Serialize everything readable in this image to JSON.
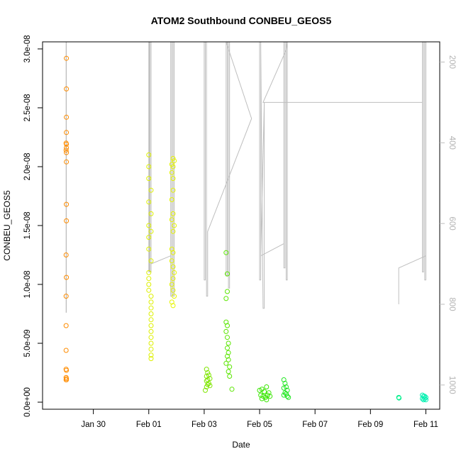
{
  "chart_data": {
    "type": "scatter",
    "title": "ATOM2 Southbound CONBEU_GEOS5",
    "xlabel": "Date",
    "ylabel": "CONBEU_GEOS5",
    "x_axis": {
      "type": "date",
      "range": [
        "2016-01-28T04:00",
        "2016-02-11T12:00"
      ],
      "ticks": [
        {
          "date": "2016-01-30",
          "label": "Jan 30"
        },
        {
          "date": "2016-02-01",
          "label": "Feb 01"
        },
        {
          "date": "2016-02-03",
          "label": "Feb 03"
        },
        {
          "date": "2016-02-05",
          "label": "Feb 05"
        },
        {
          "date": "2016-02-07",
          "label": "Feb 07"
        },
        {
          "date": "2016-02-09",
          "label": "Feb 09"
        },
        {
          "date": "2016-02-11",
          "label": "Feb 11"
        }
      ]
    },
    "y_axis": {
      "range": [
        -6e-10,
        3.06e-08
      ],
      "ticks": [
        {
          "value": 0,
          "label": "0.0e+00"
        },
        {
          "value": 5e-09,
          "label": "5.0e-09"
        },
        {
          "value": 1e-08,
          "label": "1.0e-08"
        },
        {
          "value": 1.5e-08,
          "label": "1.5e-08"
        },
        {
          "value": 2e-08,
          "label": "2.0e-08"
        },
        {
          "value": 2.5e-08,
          "label": "2.5e-08"
        },
        {
          "value": 3e-08,
          "label": "3.0e-08"
        }
      ]
    },
    "y2_axis": {
      "reversed": true,
      "color": "#bebebe",
      "range": [
        1060,
        150
      ],
      "ticks": [
        {
          "value": 200,
          "label": "200"
        },
        {
          "value": 400,
          "label": "400"
        },
        {
          "value": 600,
          "label": "600"
        },
        {
          "value": 800,
          "label": "800"
        },
        {
          "value": 1000,
          "label": "1000"
        }
      ]
    },
    "grid": false,
    "marker": "open-circle",
    "flights": [
      {
        "color": "#ff8c00",
        "points": [
          {
            "x": "2016-01-29T00:37",
            "y": 2.92e-08
          },
          {
            "x": "2016-01-29T00:37",
            "y": 2.66e-08
          },
          {
            "x": "2016-01-29T00:37",
            "y": 2.42e-08
          },
          {
            "x": "2016-01-29T00:37",
            "y": 2.29e-08
          },
          {
            "x": "2016-01-29T00:25",
            "y": 2.2e-08
          },
          {
            "x": "2016-01-29T00:37",
            "y": 2.19e-08
          },
          {
            "x": "2016-01-29T00:37",
            "y": 2.16e-08
          },
          {
            "x": "2016-01-29T00:25",
            "y": 2.14e-08
          },
          {
            "x": "2016-01-29T00:37",
            "y": 2.12e-08
          },
          {
            "x": "2016-01-29T00:37",
            "y": 2.04e-08
          },
          {
            "x": "2016-01-29T00:37",
            "y": 1.68e-08
          },
          {
            "x": "2016-01-29T00:37",
            "y": 1.54e-08
          },
          {
            "x": "2016-01-29T00:25",
            "y": 1.25e-08
          },
          {
            "x": "2016-01-29T00:37",
            "y": 1.06e-08
          },
          {
            "x": "2016-01-29T00:25",
            "y": 9e-09
          },
          {
            "x": "2016-01-29T00:25",
            "y": 6.5e-09
          },
          {
            "x": "2016-01-29T00:25",
            "y": 4.4e-09
          },
          {
            "x": "2016-01-29T00:25",
            "y": 2.8e-09
          },
          {
            "x": "2016-01-29T00:37",
            "y": 2.7e-09
          },
          {
            "x": "2016-01-29T00:25",
            "y": 2.1e-09
          },
          {
            "x": "2016-01-29T00:37",
            "y": 2e-09
          },
          {
            "x": "2016-01-29T00:25",
            "y": 1.9e-09
          },
          {
            "x": "2016-01-29T00:37",
            "y": 1.9e-09
          }
        ]
      },
      {
        "color": "#ddf000",
        "points": [
          {
            "x": "2016-02-01T00:00",
            "y": 2.1e-08
          },
          {
            "x": "2016-02-01T00:00",
            "y": 2e-08
          },
          {
            "x": "2016-02-01T00:00",
            "y": 1.9e-08
          },
          {
            "x": "2016-02-01T02:00",
            "y": 1.8e-08
          },
          {
            "x": "2016-02-01T00:00",
            "y": 1.7e-08
          },
          {
            "x": "2016-02-01T02:00",
            "y": 1.6e-08
          },
          {
            "x": "2016-02-01T00:00",
            "y": 1.5e-08
          },
          {
            "x": "2016-02-01T02:00",
            "y": 1.45e-08
          },
          {
            "x": "2016-02-01T00:00",
            "y": 1.4e-08
          },
          {
            "x": "2016-02-01T00:00",
            "y": 1.3e-08
          },
          {
            "x": "2016-02-01T02:00",
            "y": 1.2e-08
          },
          {
            "x": "2016-02-01T00:00",
            "y": 1.1e-08
          },
          {
            "x": "2016-02-01T00:00",
            "y": 1.05e-08
          },
          {
            "x": "2016-02-01T00:00",
            "y": 1e-08
          },
          {
            "x": "2016-02-01T00:00",
            "y": 9.5e-09
          },
          {
            "x": "2016-02-01T02:00",
            "y": 9e-09
          },
          {
            "x": "2016-02-01T02:00",
            "y": 8.5e-09
          },
          {
            "x": "2016-02-01T02:00",
            "y": 8e-09
          },
          {
            "x": "2016-02-01T02:00",
            "y": 7.5e-09
          },
          {
            "x": "2016-02-01T02:00",
            "y": 7e-09
          },
          {
            "x": "2016-02-01T02:00",
            "y": 6.5e-09
          },
          {
            "x": "2016-02-01T02:00",
            "y": 6e-09
          },
          {
            "x": "2016-02-01T02:00",
            "y": 5.5e-09
          },
          {
            "x": "2016-02-01T02:00",
            "y": 5e-09
          },
          {
            "x": "2016-02-01T02:00",
            "y": 4.5e-09
          },
          {
            "x": "2016-02-01T02:00",
            "y": 4e-09
          },
          {
            "x": "2016-02-01T02:00",
            "y": 3.7e-09
          }
        ]
      },
      {
        "color": "#e6f500",
        "points": [
          {
            "x": "2016-02-01T21:00",
            "y": 2.07e-08
          },
          {
            "x": "2016-02-01T22:00",
            "y": 2.05e-08
          },
          {
            "x": "2016-02-01T20:00",
            "y": 2.02e-08
          },
          {
            "x": "2016-02-01T21:00",
            "y": 2e-08
          },
          {
            "x": "2016-02-01T20:00",
            "y": 1.95e-08
          },
          {
            "x": "2016-02-01T21:00",
            "y": 1.9e-08
          },
          {
            "x": "2016-02-01T21:00",
            "y": 1.8e-08
          },
          {
            "x": "2016-02-01T20:00",
            "y": 1.72e-08
          },
          {
            "x": "2016-02-01T21:00",
            "y": 1.6e-08
          },
          {
            "x": "2016-02-01T20:00",
            "y": 1.55e-08
          },
          {
            "x": "2016-02-01T22:00",
            "y": 1.5e-08
          },
          {
            "x": "2016-02-01T21:00",
            "y": 1.45e-08
          },
          {
            "x": "2016-02-01T20:00",
            "y": 1.3e-08
          },
          {
            "x": "2016-02-01T21:00",
            "y": 1.27e-08
          },
          {
            "x": "2016-02-01T20:00",
            "y": 1.2e-08
          },
          {
            "x": "2016-02-01T21:00",
            "y": 1.15e-08
          },
          {
            "x": "2016-02-01T22:00",
            "y": 1.1e-08
          },
          {
            "x": "2016-02-01T21:00",
            "y": 1.05e-08
          },
          {
            "x": "2016-02-01T20:00",
            "y": 1e-08
          },
          {
            "x": "2016-02-01T21:00",
            "y": 9.5e-09
          },
          {
            "x": "2016-02-01T22:00",
            "y": 9e-09
          },
          {
            "x": "2016-02-01T20:00",
            "y": 8.5e-09
          },
          {
            "x": "2016-02-01T21:00",
            "y": 8.2e-09
          }
        ]
      },
      {
        "color": "#7fe600",
        "points": [
          {
            "x": "2016-02-03T02:00",
            "y": 2.8e-09
          },
          {
            "x": "2016-02-03T03:00",
            "y": 2.5e-09
          },
          {
            "x": "2016-02-03T04:00",
            "y": 2.3e-09
          },
          {
            "x": "2016-02-03T02:00",
            "y": 2.2e-09
          },
          {
            "x": "2016-02-03T05:00",
            "y": 2e-09
          },
          {
            "x": "2016-02-03T03:00",
            "y": 1.9e-09
          },
          {
            "x": "2016-02-03T02:00",
            "y": 1.8e-09
          },
          {
            "x": "2016-02-03T04:00",
            "y": 1.6e-09
          },
          {
            "x": "2016-02-03T03:00",
            "y": 1.5e-09
          },
          {
            "x": "2016-02-03T05:00",
            "y": 1.4e-09
          },
          {
            "x": "2016-02-03T02:00",
            "y": 1.3e-09
          },
          {
            "x": "2016-02-03T01:00",
            "y": 1e-09
          }
        ]
      },
      {
        "color": "#5ae600",
        "points": [
          {
            "x": "2016-02-03T19:00",
            "y": 1.27e-08
          },
          {
            "x": "2016-02-03T20:00",
            "y": 1.09e-08
          },
          {
            "x": "2016-02-03T20:00",
            "y": 9.4e-09
          },
          {
            "x": "2016-02-03T19:00",
            "y": 8.8e-09
          },
          {
            "x": "2016-02-03T19:00",
            "y": 6.8e-09
          },
          {
            "x": "2016-02-03T20:00",
            "y": 6.5e-09
          },
          {
            "x": "2016-02-03T19:00",
            "y": 6e-09
          },
          {
            "x": "2016-02-03T20:00",
            "y": 5.5e-09
          },
          {
            "x": "2016-02-03T21:00",
            "y": 5e-09
          },
          {
            "x": "2016-02-03T20:00",
            "y": 4.6e-09
          },
          {
            "x": "2016-02-03T21:00",
            "y": 4.2e-09
          },
          {
            "x": "2016-02-03T20:00",
            "y": 3.9e-09
          },
          {
            "x": "2016-02-03T21:00",
            "y": 3.6e-09
          },
          {
            "x": "2016-02-03T19:00",
            "y": 3.3e-09
          },
          {
            "x": "2016-02-03T22:00",
            "y": 3e-09
          },
          {
            "x": "2016-02-03T21:00",
            "y": 2.6e-09
          },
          {
            "x": "2016-02-03T22:00",
            "y": 2.2e-09
          },
          {
            "x": "2016-02-04T00:00",
            "y": 1.1e-09
          }
        ]
      },
      {
        "color": "#38e600",
        "points": [
          {
            "x": "2016-02-05T00:00",
            "y": 1e-09
          },
          {
            "x": "2016-02-05T02:00",
            "y": 1.1e-09
          },
          {
            "x": "2016-02-05T04:00",
            "y": 9e-10
          },
          {
            "x": "2016-02-05T06:00",
            "y": 1.3e-09
          },
          {
            "x": "2016-02-05T08:00",
            "y": 8e-10
          },
          {
            "x": "2016-02-05T01:00",
            "y": 6e-10
          },
          {
            "x": "2016-02-05T03:00",
            "y": 5e-10
          },
          {
            "x": "2016-02-05T05:00",
            "y": 4e-10
          },
          {
            "x": "2016-02-05T07:00",
            "y": 6e-10
          },
          {
            "x": "2016-02-05T09:00",
            "y": 5e-10
          },
          {
            "x": "2016-02-05T02:00",
            "y": 3e-10
          },
          {
            "x": "2016-02-05T06:00",
            "y": 2e-10
          }
        ]
      },
      {
        "color": "#20e620",
        "points": [
          {
            "x": "2016-02-05T21:00",
            "y": 1.9e-09
          },
          {
            "x": "2016-02-05T22:00",
            "y": 1.6e-09
          },
          {
            "x": "2016-02-05T23:00",
            "y": 1.3e-09
          },
          {
            "x": "2016-02-05T21:00",
            "y": 1.2e-09
          },
          {
            "x": "2016-02-06T00:00",
            "y": 1e-09
          },
          {
            "x": "2016-02-05T22:00",
            "y": 8e-10
          },
          {
            "x": "2016-02-05T23:00",
            "y": 7e-10
          },
          {
            "x": "2016-02-06T00:00",
            "y": 5e-10
          },
          {
            "x": "2016-02-05T21:00",
            "y": 6e-10
          },
          {
            "x": "2016-02-06T01:00",
            "y": 4e-10
          }
        ]
      },
      {
        "color": "#00f08c",
        "points": [
          {
            "x": "2016-02-10T00:30",
            "y": 4e-10
          },
          {
            "x": "2016-02-10T00:45",
            "y": 3.5e-10
          }
        ]
      },
      {
        "color": "#00f0b0",
        "points": [
          {
            "x": "2016-02-10T21:00",
            "y": 6e-10
          },
          {
            "x": "2016-02-10T22:00",
            "y": 5e-10
          },
          {
            "x": "2016-02-10T23:00",
            "y": 5e-10
          },
          {
            "x": "2016-02-11T00:00",
            "y": 4e-10
          },
          {
            "x": "2016-02-10T21:00",
            "y": 3e-10
          },
          {
            "x": "2016-02-10T22:00",
            "y": 2e-10
          },
          {
            "x": "2016-02-10T23:00",
            "y": 3e-10
          },
          {
            "x": "2016-02-11T00:00",
            "y": 2e-10
          }
        ]
      }
    ],
    "pressure_trace": {
      "color": "#bebebe",
      "points": [
        [
          "2016-01-29T00:25",
          150
        ],
        [
          "2016-01-29T00:25",
          820
        ],
        [
          "2016-01-29T00:37",
          820
        ],
        [
          "2016-01-29T00:37",
          150
        ],
        [
          "2016-02-01T00:00",
          150
        ],
        [
          "2016-02-01T00:00",
          720
        ],
        [
          "2016-02-01T00:30",
          720
        ],
        [
          "2016-02-01T00:30",
          150
        ],
        [
          "2016-02-01T01:00",
          150
        ],
        [
          "2016-02-01T01:00",
          720
        ],
        [
          "2016-02-01T02:00",
          720
        ],
        [
          "2016-02-01T02:00",
          150
        ],
        [
          "2016-02-01T02:00",
          700
        ],
        [
          "2016-02-01T19:00",
          680
        ],
        [
          "2016-02-01T19:00",
          150
        ],
        [
          "2016-02-01T19:00",
          780
        ],
        [
          "2016-02-01T20:00",
          780
        ],
        [
          "2016-02-01T20:00",
          150
        ],
        [
          "2016-02-01T21:00",
          150
        ],
        [
          "2016-02-01T21:00",
          780
        ],
        [
          "2016-02-01T22:00",
          780
        ],
        [
          "2016-02-01T22:00",
          150
        ],
        [
          "2016-02-03T00:00",
          150
        ],
        [
          "2016-02-03T00:00",
          740
        ],
        [
          "2016-02-03T01:00",
          740
        ],
        [
          "2016-02-03T01:00",
          150
        ],
        [
          "2016-02-03T02:00",
          150
        ],
        [
          "2016-02-03T02:00",
          780
        ],
        [
          "2016-02-03T03:00",
          780
        ],
        [
          "2016-02-03T03:00",
          620
        ],
        [
          "2016-02-04T17:00",
          340
        ],
        [
          "2016-02-03T19:00",
          150
        ],
        [
          "2016-02-03T19:00",
          730
        ],
        [
          "2016-02-03T20:00",
          730
        ],
        [
          "2016-02-03T20:00",
          150
        ],
        [
          "2016-02-03T21:00",
          150
        ],
        [
          "2016-02-03T21:00",
          760
        ],
        [
          "2016-02-03T22:00",
          760
        ],
        [
          "2016-02-03T22:00",
          150
        ],
        [
          "2016-02-05T00:00",
          150
        ],
        [
          "2016-02-05T00:00",
          740
        ],
        [
          "2016-02-05T01:00",
          740
        ],
        [
          "2016-02-05T01:00",
          150
        ],
        [
          "2016-02-05T01:00",
          170
        ],
        [
          "2016-02-05T03:00",
          810
        ],
        [
          "2016-02-05T04:00",
          810
        ],
        [
          "2016-02-05T04:00",
          300
        ],
        [
          "2016-02-05T01:00",
          680
        ],
        [
          "2016-02-05T21:00",
          650
        ],
        [
          "2016-02-05T21:00",
          150
        ],
        [
          "2016-02-05T21:00",
          710
        ],
        [
          "2016-02-05T22:00",
          710
        ],
        [
          "2016-02-05T22:00",
          150
        ],
        [
          "2016-02-05T23:00",
          150
        ],
        [
          "2016-02-05T23:00",
          740
        ],
        [
          "2016-02-06T00:00",
          740
        ],
        [
          "2016-02-06T00:00",
          150
        ],
        [
          "2016-02-05T23:00",
          170
        ],
        [
          "2016-02-05T03:00",
          300
        ],
        [
          "2016-02-10T21:00",
          300
        ],
        [
          "2016-02-10T21:00",
          150
        ],
        [
          "2016-02-10T21:00",
          720
        ],
        [
          "2016-02-10T22:00",
          720
        ],
        [
          "2016-02-10T22:00",
          150
        ],
        [
          "2016-02-10T23:00",
          150
        ],
        [
          "2016-02-10T23:00",
          740
        ],
        [
          "2016-02-11T00:00",
          740
        ],
        [
          "2016-02-11T00:00",
          150
        ],
        [
          "2016-02-11T00:00",
          680
        ],
        [
          "2016-02-10T00:30",
          710
        ],
        [
          "2016-02-10T00:30",
          800
        ]
      ]
    }
  }
}
